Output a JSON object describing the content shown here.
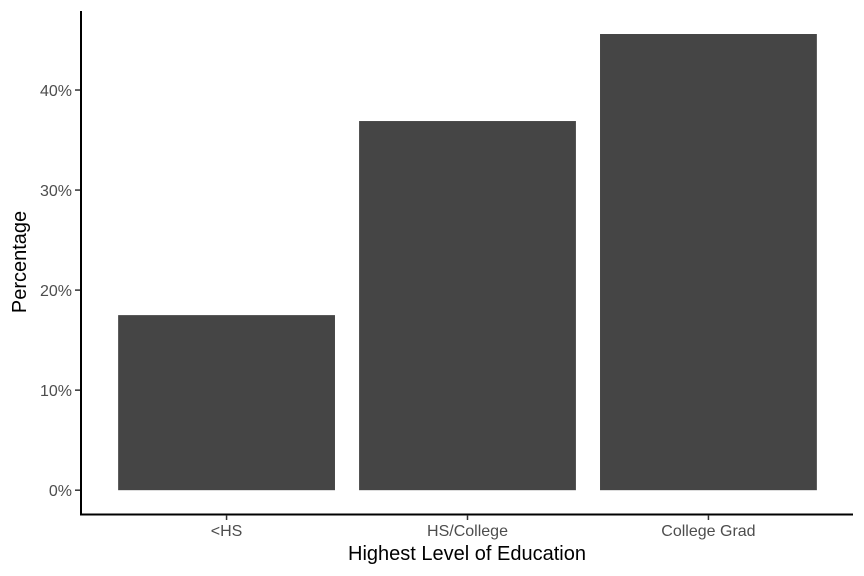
{
  "chart_data": {
    "type": "bar",
    "categories": [
      "<HS",
      "HS/College",
      "College Grad"
    ],
    "values": [
      17.5,
      36.9,
      45.6
    ],
    "xlabel": "Highest Level of Education",
    "ylabel": "Percentage",
    "ylim": [
      -2.28,
      47.9
    ],
    "yticks": [
      0,
      10,
      20,
      30,
      40
    ],
    "ytick_labels": [
      "0%",
      "10%",
      "20%",
      "30%",
      "40%"
    ],
    "grid": false,
    "bar_color": "#454545",
    "axis_color": "#000000",
    "tick_label_color": "#4d4d4d"
  }
}
